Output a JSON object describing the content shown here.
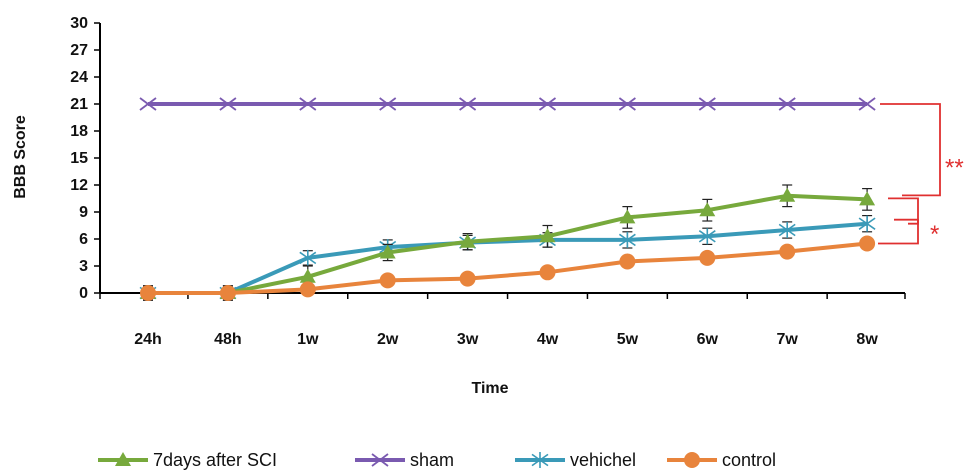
{
  "chart_data": {
    "type": "line",
    "title": "",
    "xlabel": "Time",
    "ylabel": "BBB Score",
    "categories": [
      "24h",
      "48h",
      "1w",
      "2w",
      "3w",
      "4w",
      "5w",
      "6w",
      "7w",
      "8w"
    ],
    "ylim": [
      0,
      30
    ],
    "yticks": [
      0,
      3,
      6,
      9,
      12,
      15,
      18,
      21,
      24,
      27,
      30
    ],
    "grid": false,
    "legend_position": "bottom",
    "series": [
      {
        "name": "7days after SCI",
        "color": "#77a93c",
        "marker": "triangle",
        "values": [
          0,
          0,
          1.8,
          4.5,
          5.7,
          6.3,
          8.4,
          9.2,
          10.8,
          10.4
        ],
        "errors": [
          0.8,
          0.8,
          1.2,
          0.9,
          0.9,
          1.2,
          1.2,
          1.2,
          1.2,
          1.2
        ]
      },
      {
        "name": "sham",
        "color": "#7a5ab0",
        "marker": "x",
        "values": [
          21,
          21,
          21,
          21,
          21,
          21,
          21,
          21,
          21,
          21
        ],
        "errors": [
          0,
          0,
          0,
          0,
          0,
          0,
          0,
          0,
          0,
          0
        ]
      },
      {
        "name": "vehichel",
        "color": "#3a9ab8",
        "marker": "asterisk",
        "values": [
          0,
          0,
          3.9,
          5.1,
          5.6,
          5.9,
          5.9,
          6.3,
          7.0,
          7.7
        ],
        "errors": [
          0.8,
          0.8,
          0.8,
          0.8,
          0.8,
          0.8,
          0.9,
          0.9,
          0.9,
          0.9
        ]
      },
      {
        "name": "control",
        "color": "#e8843c",
        "marker": "circle",
        "values": [
          0,
          0,
          0.4,
          1.4,
          1.6,
          2.3,
          3.5,
          3.9,
          4.6,
          5.5
        ],
        "errors": [
          0,
          0,
          0,
          0,
          0,
          0,
          0,
          0,
          0,
          0
        ]
      }
    ],
    "annotations": [
      {
        "text": "**",
        "between": [
          "sham",
          "7days after SCI"
        ],
        "color": "#e03030"
      },
      {
        "text": "*",
        "between": [
          "7days after SCI",
          "control"
        ],
        "color": "#e03030"
      }
    ]
  }
}
